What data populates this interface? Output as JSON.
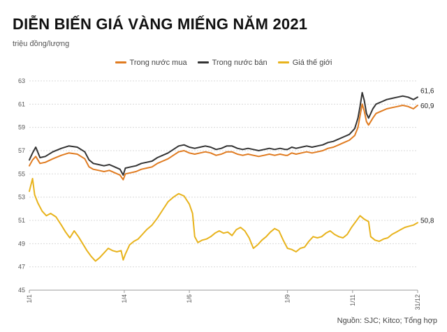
{
  "header": {
    "title": "DIỄN BIẾN GIÁ VÀNG MIẾNG NĂM 2021",
    "unit": "triệu đồng/lượng"
  },
  "footer": {
    "source": "Nguồn: SJC; Kitco; Tổng hợp"
  },
  "chart_data": {
    "type": "line",
    "title": "DIỄN BIẾN GIÁ VÀNG MIẾNG NĂM 2021",
    "ylabel": "triệu đồng/lượng",
    "ylim": [
      45,
      63
    ],
    "y_ticks": [
      "45",
      "47",
      "49",
      "51",
      "53",
      "55",
      "57",
      "59",
      "61",
      "63"
    ],
    "x_ticks": [
      {
        "label": "1/1",
        "x": 0
      },
      {
        "label": "1/4",
        "x": 89
      },
      {
        "label": "1/6",
        "x": 150
      },
      {
        "label": "1/9",
        "x": 242
      },
      {
        "label": "1/11",
        "x": 303
      },
      {
        "label": "31/12",
        "x": 364
      }
    ],
    "xlim": [
      0,
      364
    ],
    "grid": true,
    "legend_position": "top-center",
    "series": [
      {
        "name": "Trong nước mua",
        "color": "#e07b20",
        "end_label": "60,9",
        "points": [
          [
            0,
            55.7
          ],
          [
            3,
            56.2
          ],
          [
            6,
            56.5
          ],
          [
            10,
            55.9
          ],
          [
            15,
            56.0
          ],
          [
            22,
            56.3
          ],
          [
            30,
            56.6
          ],
          [
            37,
            56.8
          ],
          [
            45,
            56.7
          ],
          [
            52,
            56.3
          ],
          [
            56,
            55.6
          ],
          [
            60,
            55.4
          ],
          [
            65,
            55.3
          ],
          [
            70,
            55.2
          ],
          [
            75,
            55.3
          ],
          [
            80,
            55.1
          ],
          [
            85,
            54.9
          ],
          [
            88,
            54.5
          ],
          [
            90,
            55.0
          ],
          [
            95,
            55.1
          ],
          [
            100,
            55.2
          ],
          [
            105,
            55.4
          ],
          [
            110,
            55.5
          ],
          [
            115,
            55.6
          ],
          [
            120,
            55.9
          ],
          [
            125,
            56.1
          ],
          [
            130,
            56.3
          ],
          [
            135,
            56.6
          ],
          [
            140,
            56.9
          ],
          [
            145,
            57.0
          ],
          [
            150,
            56.8
          ],
          [
            155,
            56.7
          ],
          [
            160,
            56.8
          ],
          [
            165,
            56.9
          ],
          [
            170,
            56.8
          ],
          [
            175,
            56.6
          ],
          [
            180,
            56.7
          ],
          [
            185,
            56.9
          ],
          [
            190,
            56.9
          ],
          [
            195,
            56.7
          ],
          [
            200,
            56.6
          ],
          [
            205,
            56.7
          ],
          [
            210,
            56.6
          ],
          [
            215,
            56.5
          ],
          [
            220,
            56.6
          ],
          [
            225,
            56.7
          ],
          [
            230,
            56.6
          ],
          [
            235,
            56.7
          ],
          [
            240,
            56.6
          ],
          [
            242,
            56.6
          ],
          [
            246,
            56.8
          ],
          [
            250,
            56.7
          ],
          [
            255,
            56.8
          ],
          [
            260,
            56.9
          ],
          [
            265,
            56.8
          ],
          [
            270,
            56.9
          ],
          [
            275,
            57.0
          ],
          [
            280,
            57.2
          ],
          [
            285,
            57.3
          ],
          [
            290,
            57.5
          ],
          [
            295,
            57.7
          ],
          [
            300,
            57.9
          ],
          [
            305,
            58.3
          ],
          [
            308,
            59.0
          ],
          [
            310,
            60.0
          ],
          [
            312,
            61.0
          ],
          [
            314,
            60.4
          ],
          [
            316,
            59.5
          ],
          [
            318,
            59.2
          ],
          [
            320,
            59.5
          ],
          [
            322,
            59.8
          ],
          [
            325,
            60.2
          ],
          [
            330,
            60.4
          ],
          [
            335,
            60.6
          ],
          [
            340,
            60.7
          ],
          [
            345,
            60.8
          ],
          [
            350,
            60.9
          ],
          [
            355,
            60.8
          ],
          [
            360,
            60.6
          ],
          [
            364,
            60.9
          ]
        ]
      },
      {
        "name": "Trong nước bán",
        "color": "#333333",
        "end_label": "61,6",
        "points": [
          [
            0,
            56.2
          ],
          [
            3,
            56.8
          ],
          [
            6,
            57.3
          ],
          [
            10,
            56.4
          ],
          [
            15,
            56.5
          ],
          [
            22,
            56.9
          ],
          [
            30,
            57.2
          ],
          [
            37,
            57.4
          ],
          [
            45,
            57.3
          ],
          [
            52,
            56.9
          ],
          [
            56,
            56.2
          ],
          [
            60,
            55.9
          ],
          [
            65,
            55.8
          ],
          [
            70,
            55.7
          ],
          [
            75,
            55.8
          ],
          [
            80,
            55.6
          ],
          [
            85,
            55.4
          ],
          [
            88,
            54.9
          ],
          [
            90,
            55.5
          ],
          [
            95,
            55.6
          ],
          [
            100,
            55.7
          ],
          [
            105,
            55.9
          ],
          [
            110,
            56.0
          ],
          [
            115,
            56.1
          ],
          [
            120,
            56.4
          ],
          [
            125,
            56.6
          ],
          [
            130,
            56.8
          ],
          [
            135,
            57.1
          ],
          [
            140,
            57.4
          ],
          [
            145,
            57.5
          ],
          [
            150,
            57.3
          ],
          [
            155,
            57.2
          ],
          [
            160,
            57.3
          ],
          [
            165,
            57.4
          ],
          [
            170,
            57.3
          ],
          [
            175,
            57.1
          ],
          [
            180,
            57.2
          ],
          [
            185,
            57.4
          ],
          [
            190,
            57.4
          ],
          [
            195,
            57.2
          ],
          [
            200,
            57.1
          ],
          [
            205,
            57.2
          ],
          [
            210,
            57.1
          ],
          [
            215,
            57.0
          ],
          [
            220,
            57.1
          ],
          [
            225,
            57.2
          ],
          [
            230,
            57.1
          ],
          [
            235,
            57.2
          ],
          [
            240,
            57.1
          ],
          [
            242,
            57.1
          ],
          [
            246,
            57.3
          ],
          [
            250,
            57.2
          ],
          [
            255,
            57.3
          ],
          [
            260,
            57.4
          ],
          [
            265,
            57.3
          ],
          [
            270,
            57.4
          ],
          [
            275,
            57.5
          ],
          [
            280,
            57.7
          ],
          [
            285,
            57.8
          ],
          [
            290,
            58.0
          ],
          [
            295,
            58.2
          ],
          [
            300,
            58.4
          ],
          [
            305,
            58.9
          ],
          [
            308,
            59.8
          ],
          [
            310,
            60.8
          ],
          [
            312,
            62.0
          ],
          [
            314,
            61.3
          ],
          [
            316,
            60.2
          ],
          [
            318,
            59.8
          ],
          [
            320,
            60.2
          ],
          [
            322,
            60.6
          ],
          [
            325,
            61.0
          ],
          [
            330,
            61.2
          ],
          [
            335,
            61.4
          ],
          [
            340,
            61.5
          ],
          [
            345,
            61.6
          ],
          [
            350,
            61.7
          ],
          [
            355,
            61.6
          ],
          [
            360,
            61.4
          ],
          [
            364,
            61.6
          ]
        ]
      },
      {
        "name": "Giá thế giới",
        "color": "#e8b31c",
        "end_label": "50,8",
        "points": [
          [
            0,
            53.5
          ],
          [
            3,
            54.6
          ],
          [
            5,
            53.2
          ],
          [
            8,
            52.5
          ],
          [
            12,
            51.8
          ],
          [
            16,
            51.4
          ],
          [
            20,
            51.6
          ],
          [
            25,
            51.3
          ],
          [
            30,
            50.6
          ],
          [
            34,
            50.0
          ],
          [
            38,
            49.5
          ],
          [
            42,
            50.1
          ],
          [
            46,
            49.6
          ],
          [
            50,
            49.0
          ],
          [
            54,
            48.4
          ],
          [
            58,
            47.9
          ],
          [
            62,
            47.5
          ],
          [
            66,
            47.8
          ],
          [
            70,
            48.2
          ],
          [
            74,
            48.6
          ],
          [
            78,
            48.4
          ],
          [
            82,
            48.3
          ],
          [
            86,
            48.4
          ],
          [
            88,
            47.6
          ],
          [
            90,
            48.1
          ],
          [
            94,
            48.9
          ],
          [
            98,
            49.2
          ],
          [
            102,
            49.4
          ],
          [
            106,
            49.8
          ],
          [
            110,
            50.2
          ],
          [
            115,
            50.6
          ],
          [
            120,
            51.2
          ],
          [
            125,
            51.9
          ],
          [
            130,
            52.6
          ],
          [
            135,
            53.0
          ],
          [
            140,
            53.3
          ],
          [
            145,
            53.1
          ],
          [
            150,
            52.4
          ],
          [
            153,
            51.6
          ],
          [
            155,
            49.6
          ],
          [
            158,
            49.1
          ],
          [
            162,
            49.3
          ],
          [
            166,
            49.4
          ],
          [
            170,
            49.6
          ],
          [
            174,
            49.9
          ],
          [
            178,
            50.1
          ],
          [
            182,
            49.9
          ],
          [
            186,
            50.0
          ],
          [
            190,
            49.7
          ],
          [
            194,
            50.2
          ],
          [
            198,
            50.4
          ],
          [
            202,
            50.1
          ],
          [
            206,
            49.5
          ],
          [
            210,
            48.6
          ],
          [
            214,
            48.9
          ],
          [
            218,
            49.3
          ],
          [
            222,
            49.6
          ],
          [
            226,
            50.0
          ],
          [
            230,
            50.3
          ],
          [
            234,
            50.1
          ],
          [
            238,
            49.3
          ],
          [
            242,
            48.6
          ],
          [
            246,
            48.5
          ],
          [
            250,
            48.3
          ],
          [
            254,
            48.6
          ],
          [
            258,
            48.7
          ],
          [
            262,
            49.2
          ],
          [
            266,
            49.6
          ],
          [
            270,
            49.5
          ],
          [
            274,
            49.6
          ],
          [
            278,
            49.9
          ],
          [
            282,
            50.1
          ],
          [
            286,
            49.8
          ],
          [
            290,
            49.6
          ],
          [
            294,
            49.5
          ],
          [
            298,
            49.8
          ],
          [
            302,
            50.4
          ],
          [
            306,
            50.9
          ],
          [
            310,
            51.4
          ],
          [
            314,
            51.1
          ],
          [
            318,
            50.9
          ],
          [
            320,
            49.6
          ],
          [
            324,
            49.3
          ],
          [
            328,
            49.2
          ],
          [
            332,
            49.4
          ],
          [
            336,
            49.5
          ],
          [
            340,
            49.8
          ],
          [
            344,
            50.0
          ],
          [
            348,
            50.2
          ],
          [
            352,
            50.4
          ],
          [
            356,
            50.5
          ],
          [
            360,
            50.6
          ],
          [
            364,
            50.8
          ]
        ]
      }
    ]
  }
}
